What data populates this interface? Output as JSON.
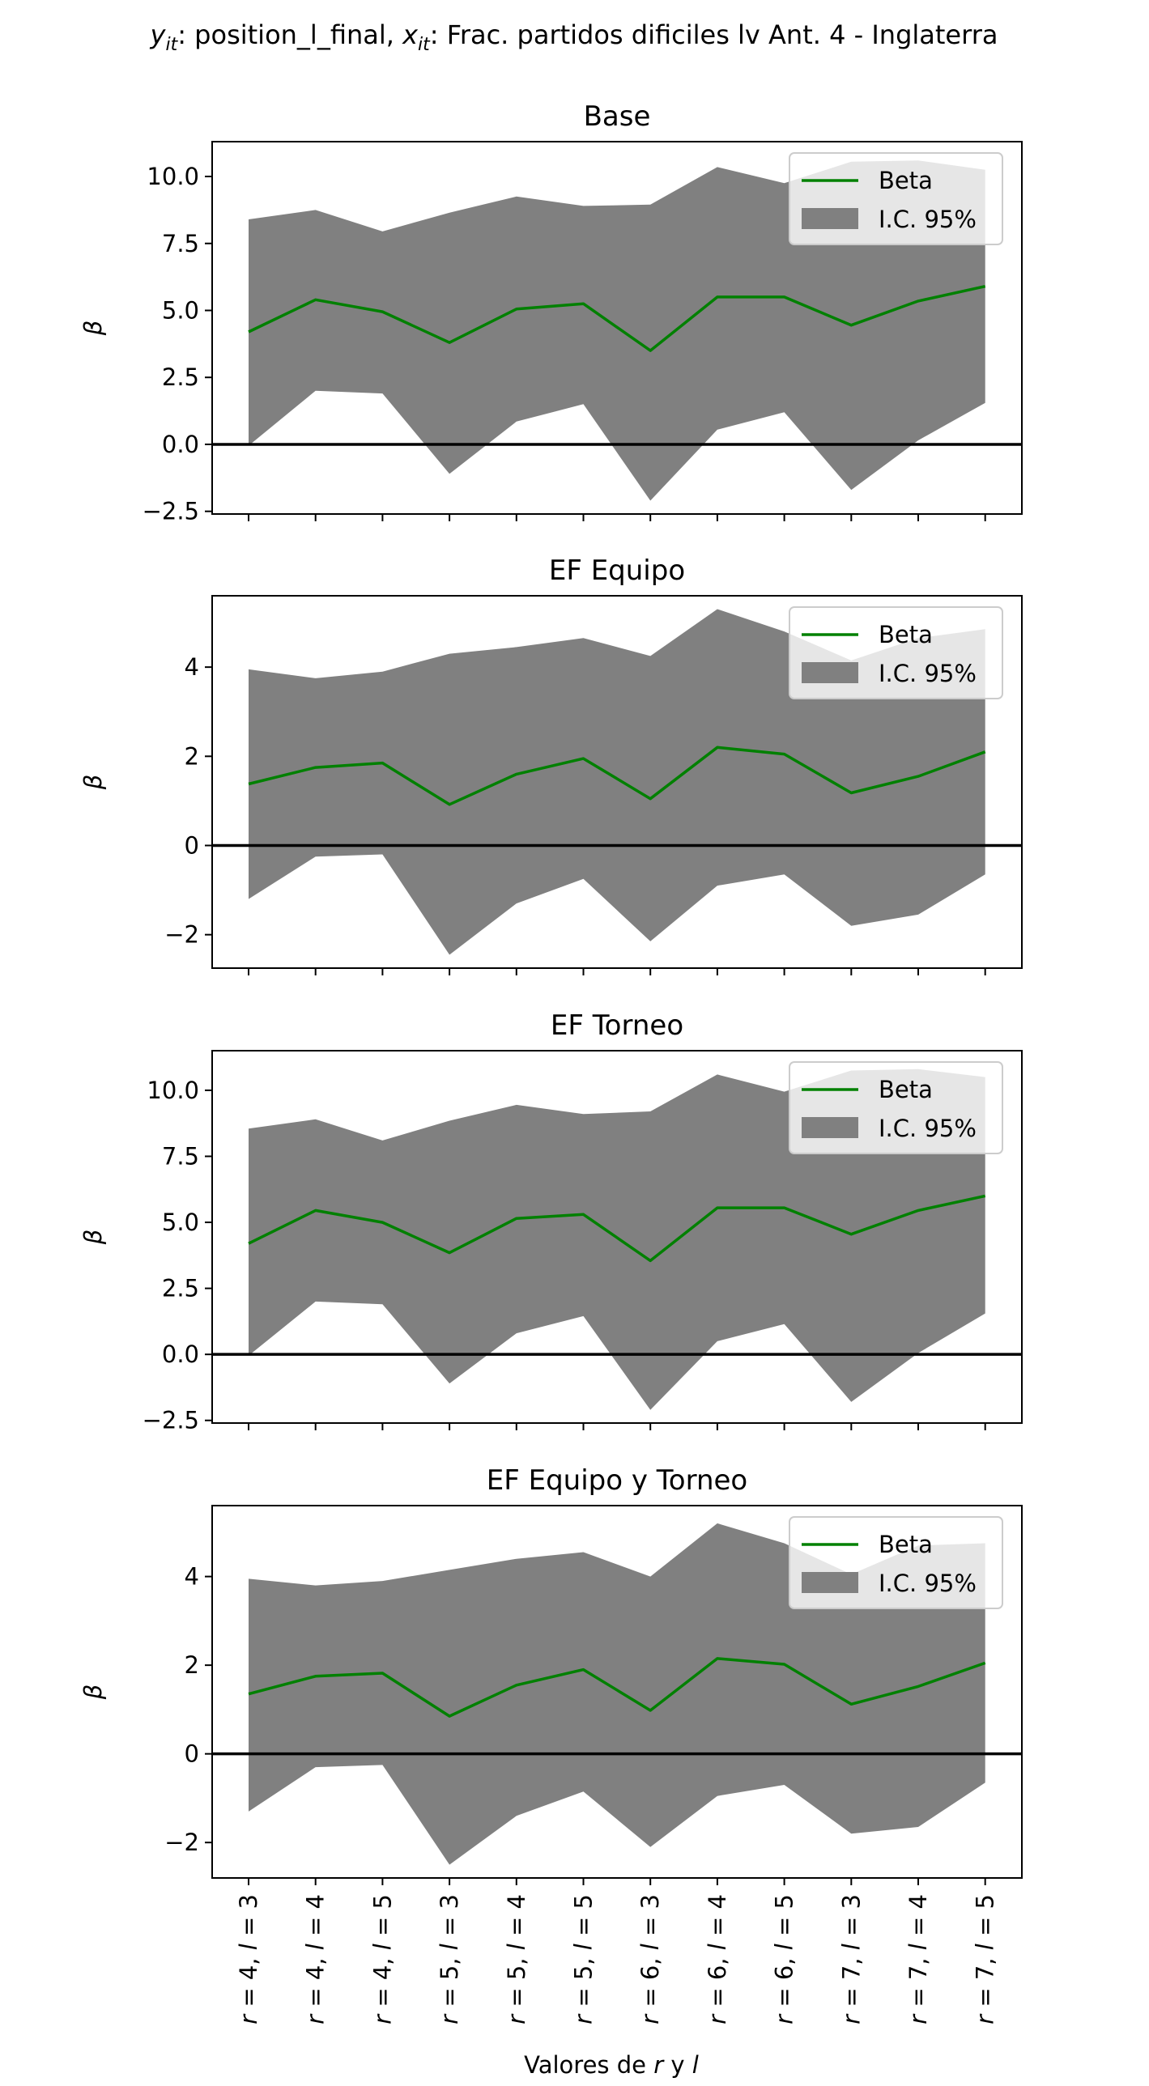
{
  "figure": {
    "suptitle_y": "y",
    "suptitle_y_sub": "it",
    "suptitle_y_text": ": position_l_final, ",
    "suptitle_x": "x",
    "suptitle_x_sub": "it",
    "suptitle_x_text": ": Frac. partidos dificiles lv Ant. 4 - Inglaterra",
    "xlabel_pre": "Valores de ",
    "xlabel_r": "r",
    "xlabel_mid": " y ",
    "xlabel_l": "l"
  },
  "colors": {
    "beta": "#008000",
    "ci": "#808080",
    "zero_line": "#000000",
    "legend_border": "#cccccc"
  },
  "chart_data": [
    {
      "type": "line",
      "title": "Base",
      "ylabel": "β",
      "ylim": [
        -2.6,
        11.3
      ],
      "yticks": [
        -2.5,
        0.0,
        2.5,
        5.0,
        7.5,
        10.0
      ],
      "ytick_labels": [
        "−2.5",
        "0.0",
        "2.5",
        "5.0",
        "7.5",
        "10.0"
      ],
      "legend": {
        "position": "upper-right",
        "items": [
          "Beta",
          "I.C. 95%"
        ]
      },
      "categories": [
        "r = 4, l = 3",
        "r = 4, l = 4",
        "r = 4, l = 5",
        "r = 5, l = 3",
        "r = 5, l = 4",
        "r = 5, l = 5",
        "r = 6, l = 3",
        "r = 6, l = 4",
        "r = 6, l = 5",
        "r = 7, l = 3",
        "r = 7, l = 4",
        "r = 7, l = 5"
      ],
      "series": [
        {
          "name": "Beta",
          "values": [
            4.2,
            5.4,
            4.95,
            3.8,
            5.05,
            5.25,
            3.5,
            5.5,
            5.5,
            4.45,
            5.35,
            5.9
          ]
        },
        {
          "name": "I.C. 95%",
          "lower": [
            -0.05,
            2.0,
            1.9,
            -1.1,
            0.85,
            1.5,
            -2.1,
            0.55,
            1.2,
            -1.7,
            0.15,
            1.55
          ],
          "upper": [
            8.4,
            8.75,
            7.95,
            8.65,
            9.25,
            8.9,
            8.95,
            10.35,
            9.75,
            10.55,
            10.6,
            10.25
          ]
        }
      ],
      "zero_line": 0
    },
    {
      "type": "line",
      "title": "EF Equipo",
      "ylabel": "β",
      "ylim": [
        -2.75,
        5.6
      ],
      "yticks": [
        -2,
        0,
        2,
        4
      ],
      "ytick_labels": [
        "−2",
        "0",
        "2",
        "4"
      ],
      "legend": {
        "position": "upper-right",
        "items": [
          "Beta",
          "I.C. 95%"
        ]
      },
      "categories": [
        "r = 4, l = 3",
        "r = 4, l = 4",
        "r = 4, l = 5",
        "r = 5, l = 3",
        "r = 5, l = 4",
        "r = 5, l = 5",
        "r = 6, l = 3",
        "r = 6, l = 4",
        "r = 6, l = 5",
        "r = 7, l = 3",
        "r = 7, l = 4",
        "r = 7, l = 5"
      ],
      "series": [
        {
          "name": "Beta",
          "values": [
            1.38,
            1.75,
            1.85,
            0.92,
            1.6,
            1.95,
            1.05,
            2.2,
            2.05,
            1.18,
            1.55,
            2.1
          ]
        },
        {
          "name": "I.C. 95%",
          "lower": [
            -1.2,
            -0.25,
            -0.2,
            -2.45,
            -1.3,
            -0.75,
            -2.15,
            -0.9,
            -0.65,
            -1.8,
            -1.55,
            -0.65
          ],
          "upper": [
            3.95,
            3.75,
            3.9,
            4.3,
            4.45,
            4.65,
            4.25,
            5.3,
            4.8,
            4.15,
            4.65,
            4.85
          ]
        }
      ],
      "zero_line": 0
    },
    {
      "type": "line",
      "title": "EF Torneo",
      "ylabel": "β",
      "ylim": [
        -2.6,
        11.5
      ],
      "yticks": [
        -2.5,
        0.0,
        2.5,
        5.0,
        7.5,
        10.0
      ],
      "ytick_labels": [
        "−2.5",
        "0.0",
        "2.5",
        "5.0",
        "7.5",
        "10.0"
      ],
      "legend": {
        "position": "upper-right",
        "items": [
          "Beta",
          "I.C. 95%"
        ]
      },
      "categories": [
        "r = 4, l = 3",
        "r = 4, l = 4",
        "r = 4, l = 5",
        "r = 5, l = 3",
        "r = 5, l = 4",
        "r = 5, l = 5",
        "r = 6, l = 3",
        "r = 6, l = 4",
        "r = 6, l = 5",
        "r = 7, l = 3",
        "r = 7, l = 4",
        "r = 7, l = 5"
      ],
      "series": [
        {
          "name": "Beta",
          "values": [
            4.2,
            5.45,
            5.0,
            3.85,
            5.15,
            5.3,
            3.55,
            5.55,
            5.55,
            4.55,
            5.45,
            6.0
          ]
        },
        {
          "name": "I.C. 95%",
          "lower": [
            -0.05,
            2.0,
            1.9,
            -1.1,
            0.8,
            1.45,
            -2.1,
            0.5,
            1.15,
            -1.8,
            0.05,
            1.55
          ],
          "upper": [
            8.55,
            8.9,
            8.1,
            8.85,
            9.45,
            9.1,
            9.2,
            10.6,
            9.95,
            10.75,
            10.8,
            10.5
          ]
        }
      ],
      "zero_line": 0
    },
    {
      "type": "line",
      "title": "EF Equipo y Torneo",
      "ylabel": "β",
      "ylim": [
        -2.8,
        5.6
      ],
      "yticks": [
        -2,
        0,
        2,
        4
      ],
      "ytick_labels": [
        "−2",
        "0",
        "2",
        "4"
      ],
      "legend": {
        "position": "upper-right",
        "items": [
          "Beta",
          "I.C. 95%"
        ]
      },
      "categories": [
        "r = 4, l = 3",
        "r = 4, l = 4",
        "r = 4, l = 5",
        "r = 5, l = 3",
        "r = 5, l = 4",
        "r = 5, l = 5",
        "r = 6, l = 3",
        "r = 6, l = 4",
        "r = 6, l = 5",
        "r = 7, l = 3",
        "r = 7, l = 4",
        "r = 7, l = 5"
      ],
      "series": [
        {
          "name": "Beta",
          "values": [
            1.35,
            1.75,
            1.82,
            0.85,
            1.55,
            1.9,
            0.98,
            2.15,
            2.02,
            1.12,
            1.52,
            2.05
          ]
        },
        {
          "name": "I.C. 95%",
          "lower": [
            -1.3,
            -0.3,
            -0.25,
            -2.5,
            -1.4,
            -0.85,
            -2.1,
            -0.95,
            -0.7,
            -1.8,
            -1.65,
            -0.65
          ],
          "upper": [
            3.95,
            3.8,
            3.9,
            4.15,
            4.4,
            4.55,
            4.0,
            5.2,
            4.75,
            4.05,
            4.7,
            4.75
          ]
        }
      ],
      "zero_line": 0
    }
  ]
}
